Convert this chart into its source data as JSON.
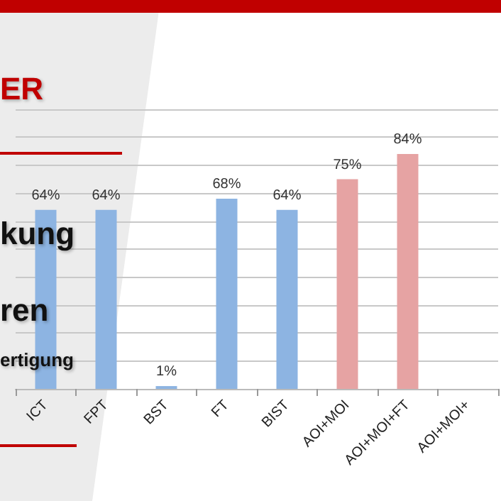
{
  "chart_data": {
    "type": "bar",
    "categories": [
      "ICT",
      "FPT",
      "BST",
      "FT",
      "BIST",
      "AOI+MOI",
      "AOI+MOI+FT",
      "AOI+MOI+"
    ],
    "values": [
      64,
      64,
      1,
      68,
      64,
      75,
      84,
      null
    ],
    "colors": [
      "#8db4e2",
      "#8db4e2",
      "#8db4e2",
      "#8db4e2",
      "#8db4e2",
      "#e6a3a3",
      "#e6a3a3",
      "#e6a3a3"
    ],
    "value_labels": [
      "64%",
      "64%",
      "1%",
      "68%",
      "64%",
      "75%",
      "84%",
      null
    ],
    "ylim": [
      0,
      100
    ],
    "yticks": [
      {
        "value": 0,
        "label": null
      },
      {
        "value": 10,
        "label": null
      },
      {
        "value": 20,
        "label": null
      },
      {
        "value": 30,
        "label": null
      },
      {
        "value": 40,
        "label": null
      },
      {
        "value": 50,
        "label": null
      },
      {
        "value": 60,
        "label": null
      },
      {
        "value": 70,
        "label": null
      },
      {
        "value": 80,
        "label": null
      },
      {
        "value": 90,
        "label": null
      },
      {
        "value": 100,
        "label": null
      }
    ],
    "grid": "y",
    "annotations": [
      "ER",
      "kung",
      "ren",
      "ertigung"
    ]
  }
}
